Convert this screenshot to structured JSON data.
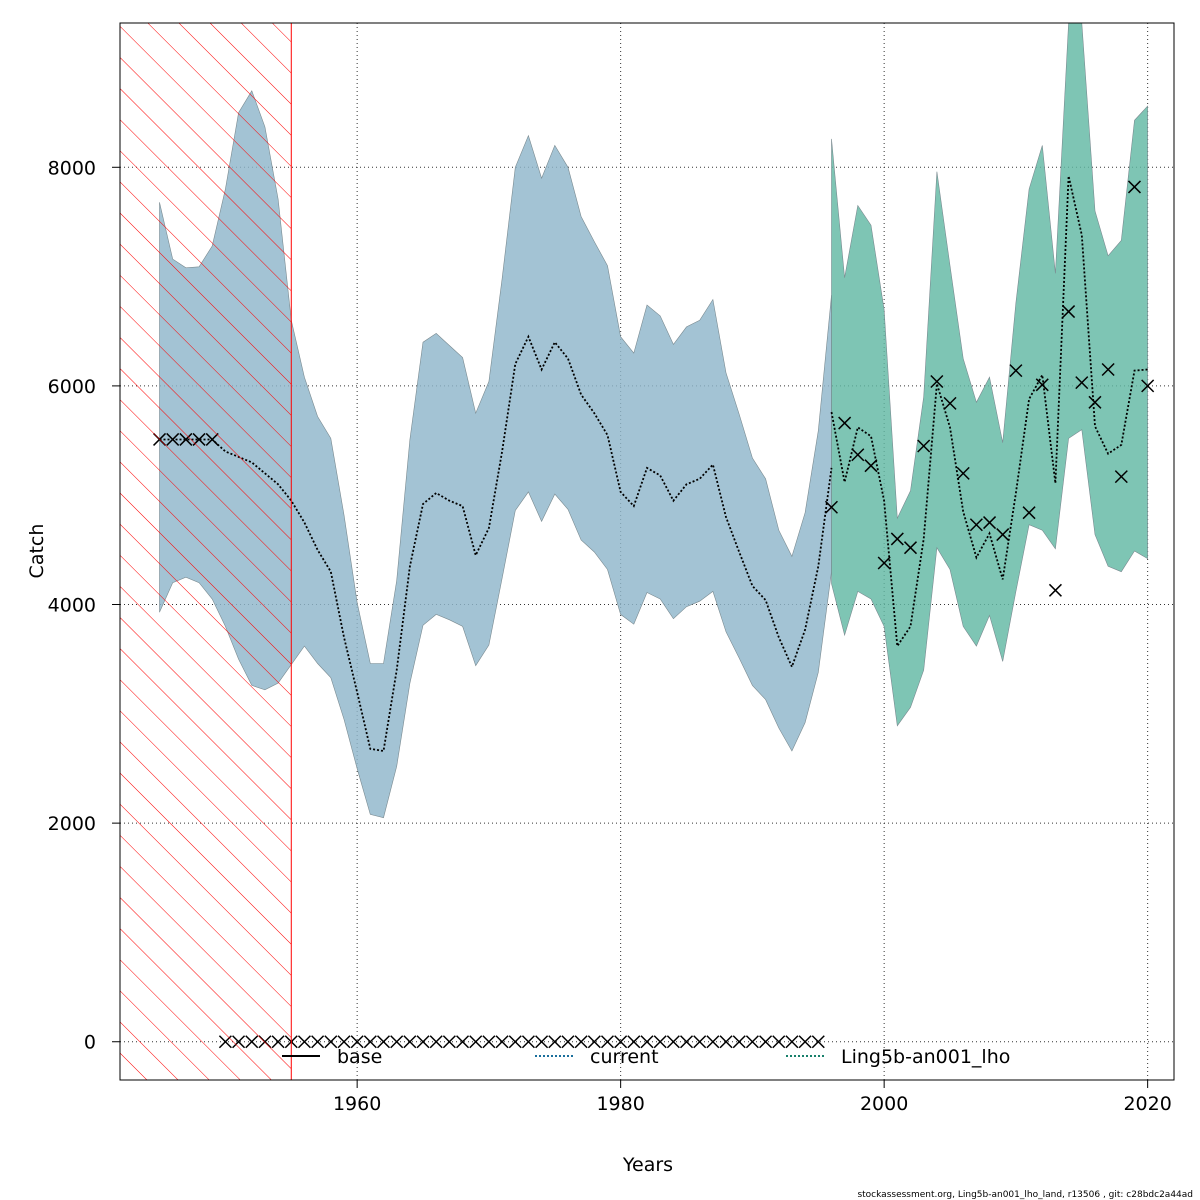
{
  "chart_data": {
    "type": "line",
    "xlabel": "Years",
    "ylabel": "Catch",
    "footer": "stockassessment.org, Ling5b-an001_lho_land, r13506 , git: c28bdc2a44ad",
    "xlim": [
      1942,
      2022
    ],
    "ylim": [
      -350,
      9320
    ],
    "x_ticks": [
      1960,
      1980,
      2000,
      2020
    ],
    "y_ticks": [
      0,
      2000,
      4000,
      6000,
      8000
    ],
    "grid": true,
    "legend_position": "bottom",
    "legend": [
      {
        "label": "base",
        "color": "#000000",
        "dash": "solid"
      },
      {
        "label": "current",
        "color": "#1a6f9c",
        "dash": "dotted"
      },
      {
        "label": "Ling5b-an001_lho",
        "color": "#17806b",
        "dash": "dotted"
      }
    ],
    "shaded_period": {
      "from": 1942,
      "to": 1955,
      "color": "#ff0000"
    },
    "series": [
      {
        "name": "current",
        "color": "#1a6f9c",
        "band_color": "#8fb6cb",
        "x": [
          1945,
          1946,
          1947,
          1948,
          1949,
          1950,
          1951,
          1952,
          1953,
          1954,
          1955,
          1956,
          1957,
          1958,
          1959,
          1960,
          1961,
          1962,
          1963,
          1964,
          1965,
          1966,
          1967,
          1968,
          1969,
          1970,
          1971,
          1972,
          1973,
          1974,
          1975,
          1976,
          1977,
          1978,
          1979,
          1980,
          1981,
          1982,
          1983,
          1984,
          1985,
          1986,
          1987,
          1988,
          1989,
          1990,
          1991,
          1992,
          1993,
          1994,
          1995,
          1996
        ],
        "y": [
          5510,
          5510,
          5510,
          5510,
          5510,
          5400,
          5350,
          5300,
          5200,
          5100,
          4950,
          4750,
          4500,
          4300,
          3700,
          3200,
          2680,
          2660,
          3400,
          4350,
          4920,
          5020,
          4950,
          4900,
          4450,
          4700,
          5400,
          6200,
          6450,
          6150,
          6400,
          6250,
          5920,
          5750,
          5550,
          5030,
          4900,
          5250,
          5180,
          4950,
          5100,
          5150,
          5280,
          4800,
          4480,
          4170,
          4040,
          3700,
          3430,
          3770,
          4350,
          5250
        ],
        "lower": [
          3930,
          4200,
          4250,
          4200,
          4050,
          3800,
          3500,
          3260,
          3220,
          3280,
          3450,
          3620,
          3460,
          3330,
          2950,
          2500,
          2080,
          2050,
          2520,
          3280,
          3810,
          3910,
          3860,
          3800,
          3440,
          3630,
          4240,
          4860,
          5030,
          4760,
          5010,
          4870,
          4590,
          4480,
          4320,
          3910,
          3820,
          4110,
          4050,
          3870,
          3980,
          4030,
          4120,
          3750,
          3510,
          3260,
          3130,
          2870,
          2660,
          2920,
          3380,
          4300
        ],
        "upper": [
          7680,
          7160,
          7080,
          7090,
          7280,
          7800,
          8500,
          8700,
          8370,
          7710,
          6600,
          6080,
          5720,
          5520,
          4820,
          4020,
          3460,
          3460,
          4220,
          5510,
          6400,
          6480,
          6370,
          6260,
          5750,
          6040,
          6980,
          8000,
          8290,
          7900,
          8200,
          8000,
          7550,
          7320,
          7100,
          6450,
          6300,
          6740,
          6640,
          6380,
          6540,
          6600,
          6790,
          6120,
          5740,
          5340,
          5150,
          4680,
          4440,
          4840,
          5590,
          6830
        ]
      },
      {
        "name": "Ling5b-an001_lho",
        "color": "#17806b",
        "band_color": "#61b8a4",
        "x": [
          1996,
          1997,
          1998,
          1999,
          2000,
          2001,
          2002,
          2003,
          2004,
          2005,
          2006,
          2007,
          2008,
          2009,
          2010,
          2011,
          2012,
          2013,
          2014,
          2015,
          2016,
          2017,
          2018,
          2019,
          2020
        ],
        "y": [
          5760,
          5120,
          5620,
          5540,
          4950,
          3620,
          3800,
          4600,
          6020,
          5620,
          4850,
          4430,
          4650,
          4230,
          5020,
          5880,
          6100,
          5110,
          7920,
          7380,
          5630,
          5380,
          5460,
          6140,
          6150
        ],
        "lower": [
          4190,
          3720,
          4120,
          4050,
          3800,
          2890,
          3060,
          3400,
          4520,
          4320,
          3800,
          3620,
          3900,
          3480,
          4120,
          4730,
          4680,
          4510,
          5520,
          5600,
          4640,
          4350,
          4300,
          4490,
          4420
        ],
        "upper": [
          8260,
          6990,
          7650,
          7470,
          6700,
          4790,
          5040,
          5900,
          7960,
          7100,
          6250,
          5850,
          6080,
          5480,
          6760,
          7800,
          8200,
          7030,
          9320,
          9320,
          7600,
          7190,
          7330,
          8430,
          8560
        ]
      }
    ],
    "observations": {
      "marker": "x",
      "x": [
        1945,
        1946,
        1947,
        1948,
        1949,
        1950,
        1951,
        1952,
        1953,
        1954,
        1955,
        1956,
        1957,
        1958,
        1959,
        1960,
        1961,
        1962,
        1963,
        1964,
        1965,
        1966,
        1967,
        1968,
        1969,
        1970,
        1971,
        1972,
        1973,
        1974,
        1975,
        1976,
        1977,
        1978,
        1979,
        1980,
        1981,
        1982,
        1983,
        1984,
        1985,
        1986,
        1987,
        1988,
        1989,
        1990,
        1991,
        1992,
        1993,
        1994,
        1995,
        1996,
        1997,
        1998,
        1999,
        2000,
        2001,
        2002,
        2003,
        2004,
        2005,
        2006,
        2007,
        2008,
        2009,
        2010,
        2011,
        2012,
        2013,
        2014,
        2015,
        2016,
        2017,
        2018,
        2019,
        2020
      ],
      "y": [
        5510,
        5510,
        5510,
        5510,
        5510,
        0,
        0,
        0,
        0,
        0,
        0,
        0,
        0,
        0,
        0,
        0,
        0,
        0,
        0,
        0,
        0,
        0,
        0,
        0,
        0,
        0,
        0,
        0,
        0,
        0,
        0,
        0,
        0,
        0,
        0,
        0,
        0,
        0,
        0,
        0,
        0,
        0,
        0,
        0,
        0,
        0,
        0,
        0,
        0,
        0,
        0,
        4890,
        5660,
        5370,
        5270,
        4380,
        4600,
        4520,
        5450,
        6040,
        5840,
        5200,
        4730,
        4750,
        4640,
        6140,
        4840,
        6010,
        4130,
        6680,
        6030,
        5850,
        6150,
        5170,
        7820,
        6000
      ]
    }
  }
}
